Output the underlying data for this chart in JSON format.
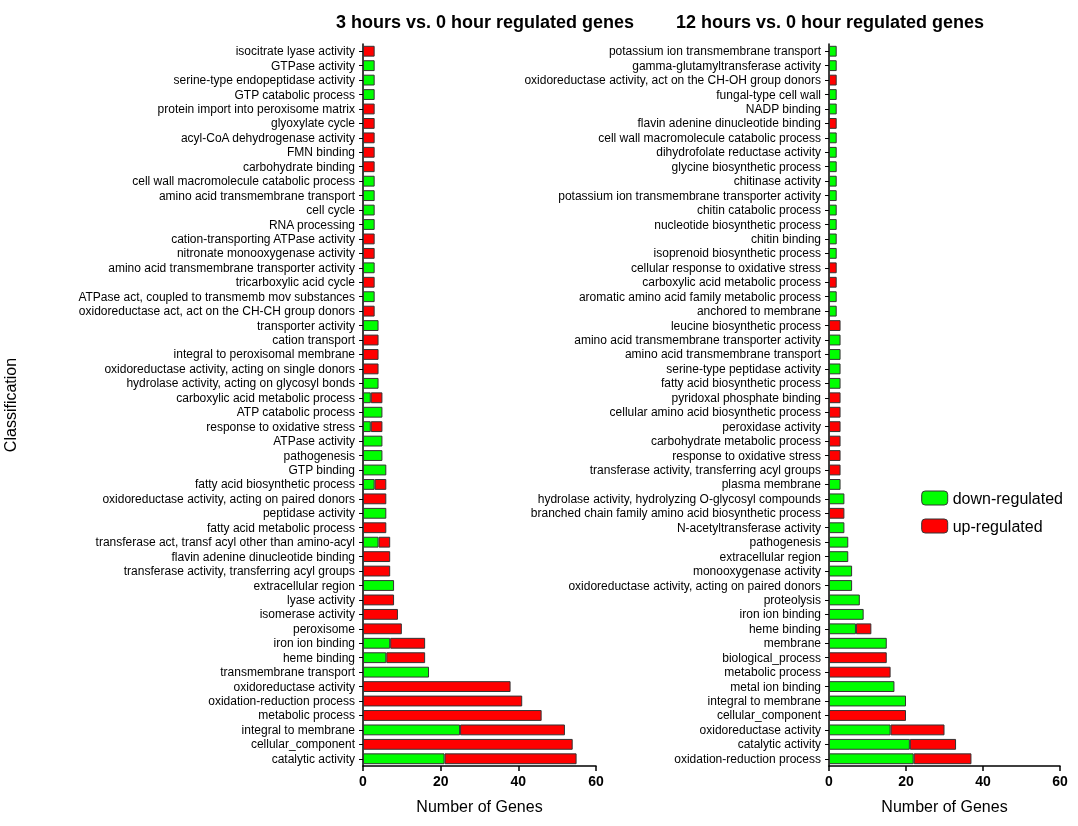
{
  "chart_data": [
    {
      "type": "bar",
      "orientation": "horizontal",
      "stacked": true,
      "title": "3 hours vs. 0 hour regulated genes",
      "xlabel": "Number of Genes",
      "ylabel": "Classification",
      "xlim": [
        0,
        60
      ],
      "xticks": [
        0,
        20,
        40,
        60
      ],
      "grid": false,
      "categories": [
        "isocitrate lyase activity",
        "GTPase activity",
        "serine-type endopeptidase activity",
        "GTP catabolic process",
        "protein import into peroxisome matrix",
        "glyoxylate cycle",
        "acyl-CoA dehydrogenase activity",
        "FMN binding",
        "carbohydrate binding",
        "cell wall macromolecule catabolic process",
        "amino acid transmembrane transport",
        "cell cycle",
        "RNA processing",
        "cation-transporting ATPase activity",
        "nitronate monooxygenase activity",
        "amino acid transmembrane transporter activity",
        "tricarboxylic acid cycle",
        "ATPase act, coupled to transmemb mov substances",
        "oxidoreductase act, act on the CH-CH group donors",
        "transporter activity",
        "cation transport",
        "integral to peroxisomal membrane",
        "oxidoreductase activity, acting on single donors",
        "hydrolase activity, acting on glycosyl bonds",
        "carboxylic acid metabolic process",
        "ATP catabolic process",
        "response to oxidative stress",
        "ATPase activity",
        "pathogenesis",
        "GTP binding",
        "fatty acid biosynthetic process",
        "oxidoreductase activity, acting on paired donors",
        "peptidase activity",
        "fatty acid metabolic process",
        "transferase act, transf acyl other than amino-acyl",
        "flavin adenine dinucleotide binding",
        "transferase activity, transferring acyl groups",
        "extracellular region",
        "lyase activity",
        "isomerase activity",
        "peroxisome",
        "iron ion binding",
        "heme binding",
        "transmembrane transport",
        "oxidoreductase activity",
        "oxidation-reduction process",
        "metabolic process",
        "integral to membrane",
        "cellular_component",
        "catalytic activity"
      ],
      "series": [
        {
          "color": "#00ff00",
          "values": [
            null,
            3,
            3,
            3,
            null,
            null,
            null,
            null,
            null,
            3,
            3,
            3,
            3,
            null,
            null,
            3,
            null,
            3,
            null,
            4,
            null,
            null,
            null,
            4,
            2,
            5,
            2,
            5,
            5,
            6,
            3,
            null,
            6,
            null,
            4,
            null,
            null,
            8,
            null,
            null,
            null,
            7,
            6,
            17,
            null,
            null,
            null,
            25,
            null,
            21
          ]
        },
        {
          "color": "#ff0000",
          "values": [
            3,
            null,
            null,
            null,
            3,
            3,
            3,
            3,
            3,
            null,
            null,
            null,
            null,
            3,
            3,
            null,
            3,
            null,
            3,
            null,
            4,
            4,
            4,
            null,
            3,
            null,
            3,
            null,
            null,
            null,
            3,
            6,
            null,
            6,
            3,
            7,
            7,
            null,
            8,
            9,
            10,
            9,
            10,
            null,
            38,
            41,
            46,
            27,
            54,
            34
          ]
        }
      ]
    },
    {
      "type": "bar",
      "orientation": "horizontal",
      "stacked": true,
      "title": "12 hours vs. 0 hour regulated genes",
      "xlabel": "Number of Genes",
      "xlim": [
        0,
        60
      ],
      "xticks": [
        0,
        20,
        40,
        60
      ],
      "grid": false,
      "legend": "right",
      "categories": [
        "potassium ion transmembrane transport",
        "gamma-glutamyltransferase activity",
        "oxidoreductase activity, act on the CH-OH group donors",
        "fungal-type cell wall",
        "NADP binding",
        "flavin adenine dinucleotide binding",
        "cell wall macromolecule catabolic process",
        "dihydrofolate reductase activity",
        "glycine biosynthetic process",
        "chitinase activity",
        "potassium ion transmembrane transporter activity",
        "chitin catabolic process",
        "nucleotide biosynthetic process",
        "chitin binding",
        "isoprenoid biosynthetic process",
        "cellular response to oxidative stress",
        "carboxylic acid metabolic process",
        "aromatic amino acid family metabolic process",
        "anchored to membrane",
        "leucine biosynthetic process",
        "amino acid transmembrane transporter activity",
        "amino acid transmembrane transport",
        "serine-type peptidase activity",
        "fatty acid biosynthetic process",
        "pyridoxal phosphate binding",
        "cellular amino acid biosynthetic process",
        "peroxidase activity",
        "carbohydrate metabolic process",
        "response to oxidative stress",
        "transferase activity, transferring acyl groups",
        "plasma membrane",
        "hydrolase activity, hydrolyzing O-glycosyl compounds",
        "branched chain family amino acid biosynthetic process",
        "N-acetyltransferase activity",
        "pathogenesis",
        "extracellular region",
        "monooxygenase activity",
        "oxidoreductase activity, acting on paired donors",
        "proteolysis",
        "iron ion binding",
        "heme binding",
        "membrane",
        "biological_process",
        "metabolic process",
        "metal ion binding",
        "integral to membrane",
        "cellular_component",
        "oxidoreductase activity",
        "catalytic activity",
        "oxidation-reduction process"
      ],
      "series": [
        {
          "name": "down-regulated",
          "color": "#00ff00",
          "values": [
            2,
            2,
            null,
            2,
            2,
            null,
            2,
            2,
            2,
            2,
            2,
            2,
            2,
            2,
            2,
            null,
            null,
            2,
            2,
            null,
            3,
            3,
            3,
            3,
            null,
            null,
            null,
            null,
            null,
            null,
            3,
            4,
            null,
            4,
            5,
            5,
            6,
            6,
            8,
            9,
            7,
            15,
            null,
            null,
            17,
            20,
            null,
            16,
            21,
            22
          ]
        },
        {
          "name": "up-regulated",
          "color": "#ff0000",
          "values": [
            null,
            null,
            2,
            null,
            null,
            2,
            null,
            null,
            null,
            null,
            null,
            null,
            null,
            null,
            null,
            2,
            2,
            null,
            null,
            3,
            null,
            null,
            null,
            null,
            3,
            3,
            3,
            3,
            3,
            3,
            null,
            null,
            4,
            null,
            null,
            null,
            null,
            null,
            null,
            null,
            4,
            null,
            15,
            16,
            null,
            null,
            20,
            14,
            12,
            15
          ]
        }
      ]
    }
  ]
}
